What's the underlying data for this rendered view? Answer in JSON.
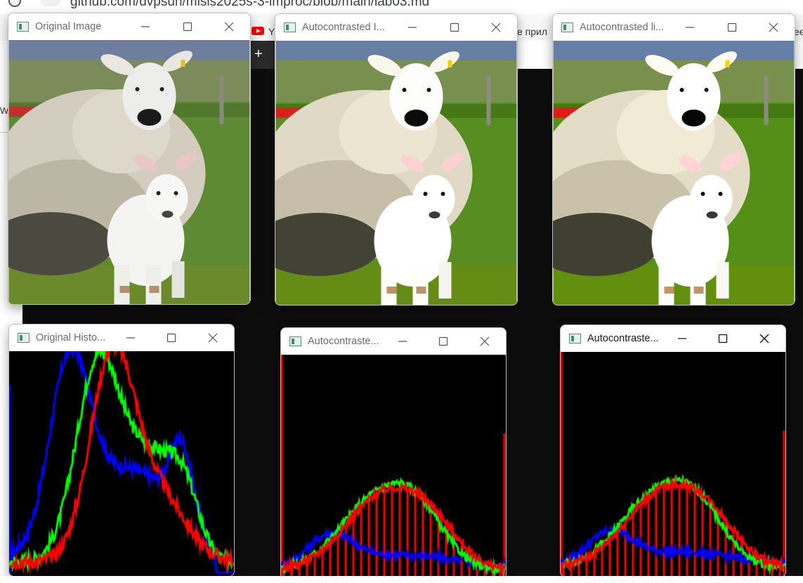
{
  "browser": {
    "url": "github.com/dvpsun/misis2025s-3-improc/blob/main/lab03.md",
    "bookmark_left": "Y",
    "bookmark_mid": "е прил",
    "bookmark_right": "ee",
    "tab_plus": "+",
    "left_labels": [
      "W"
    ]
  },
  "windows": [
    {
      "id": "orig-img",
      "title": "Original Image",
      "type": "image",
      "active": false
    },
    {
      "id": "auto-img-1",
      "title": "Autocontrasted I...",
      "type": "image",
      "active": false
    },
    {
      "id": "auto-img-2",
      "title": "Autocontrasted li...",
      "type": "image",
      "active": false
    },
    {
      "id": "orig-hist",
      "title": "Original Histo...",
      "type": "histogram",
      "active": false
    },
    {
      "id": "auto-hist-1",
      "title": "Autocontraste...",
      "type": "histogram",
      "active": false
    },
    {
      "id": "auto-hist-2",
      "title": "Autocontraste...",
      "type": "histogram",
      "active": true
    }
  ],
  "icons": {
    "minimize": "minimize-icon",
    "maximize": "maximize-icon",
    "close": "close-icon",
    "app": "opencv-window-icon"
  },
  "colors": {
    "hist_bg": "#000000",
    "blue": "#0000ff",
    "green": "#00ff00",
    "red": "#ff0000",
    "grass": "#4f7a2c",
    "wool": "#d8d4c8",
    "sky": "#6d7f9c"
  }
}
